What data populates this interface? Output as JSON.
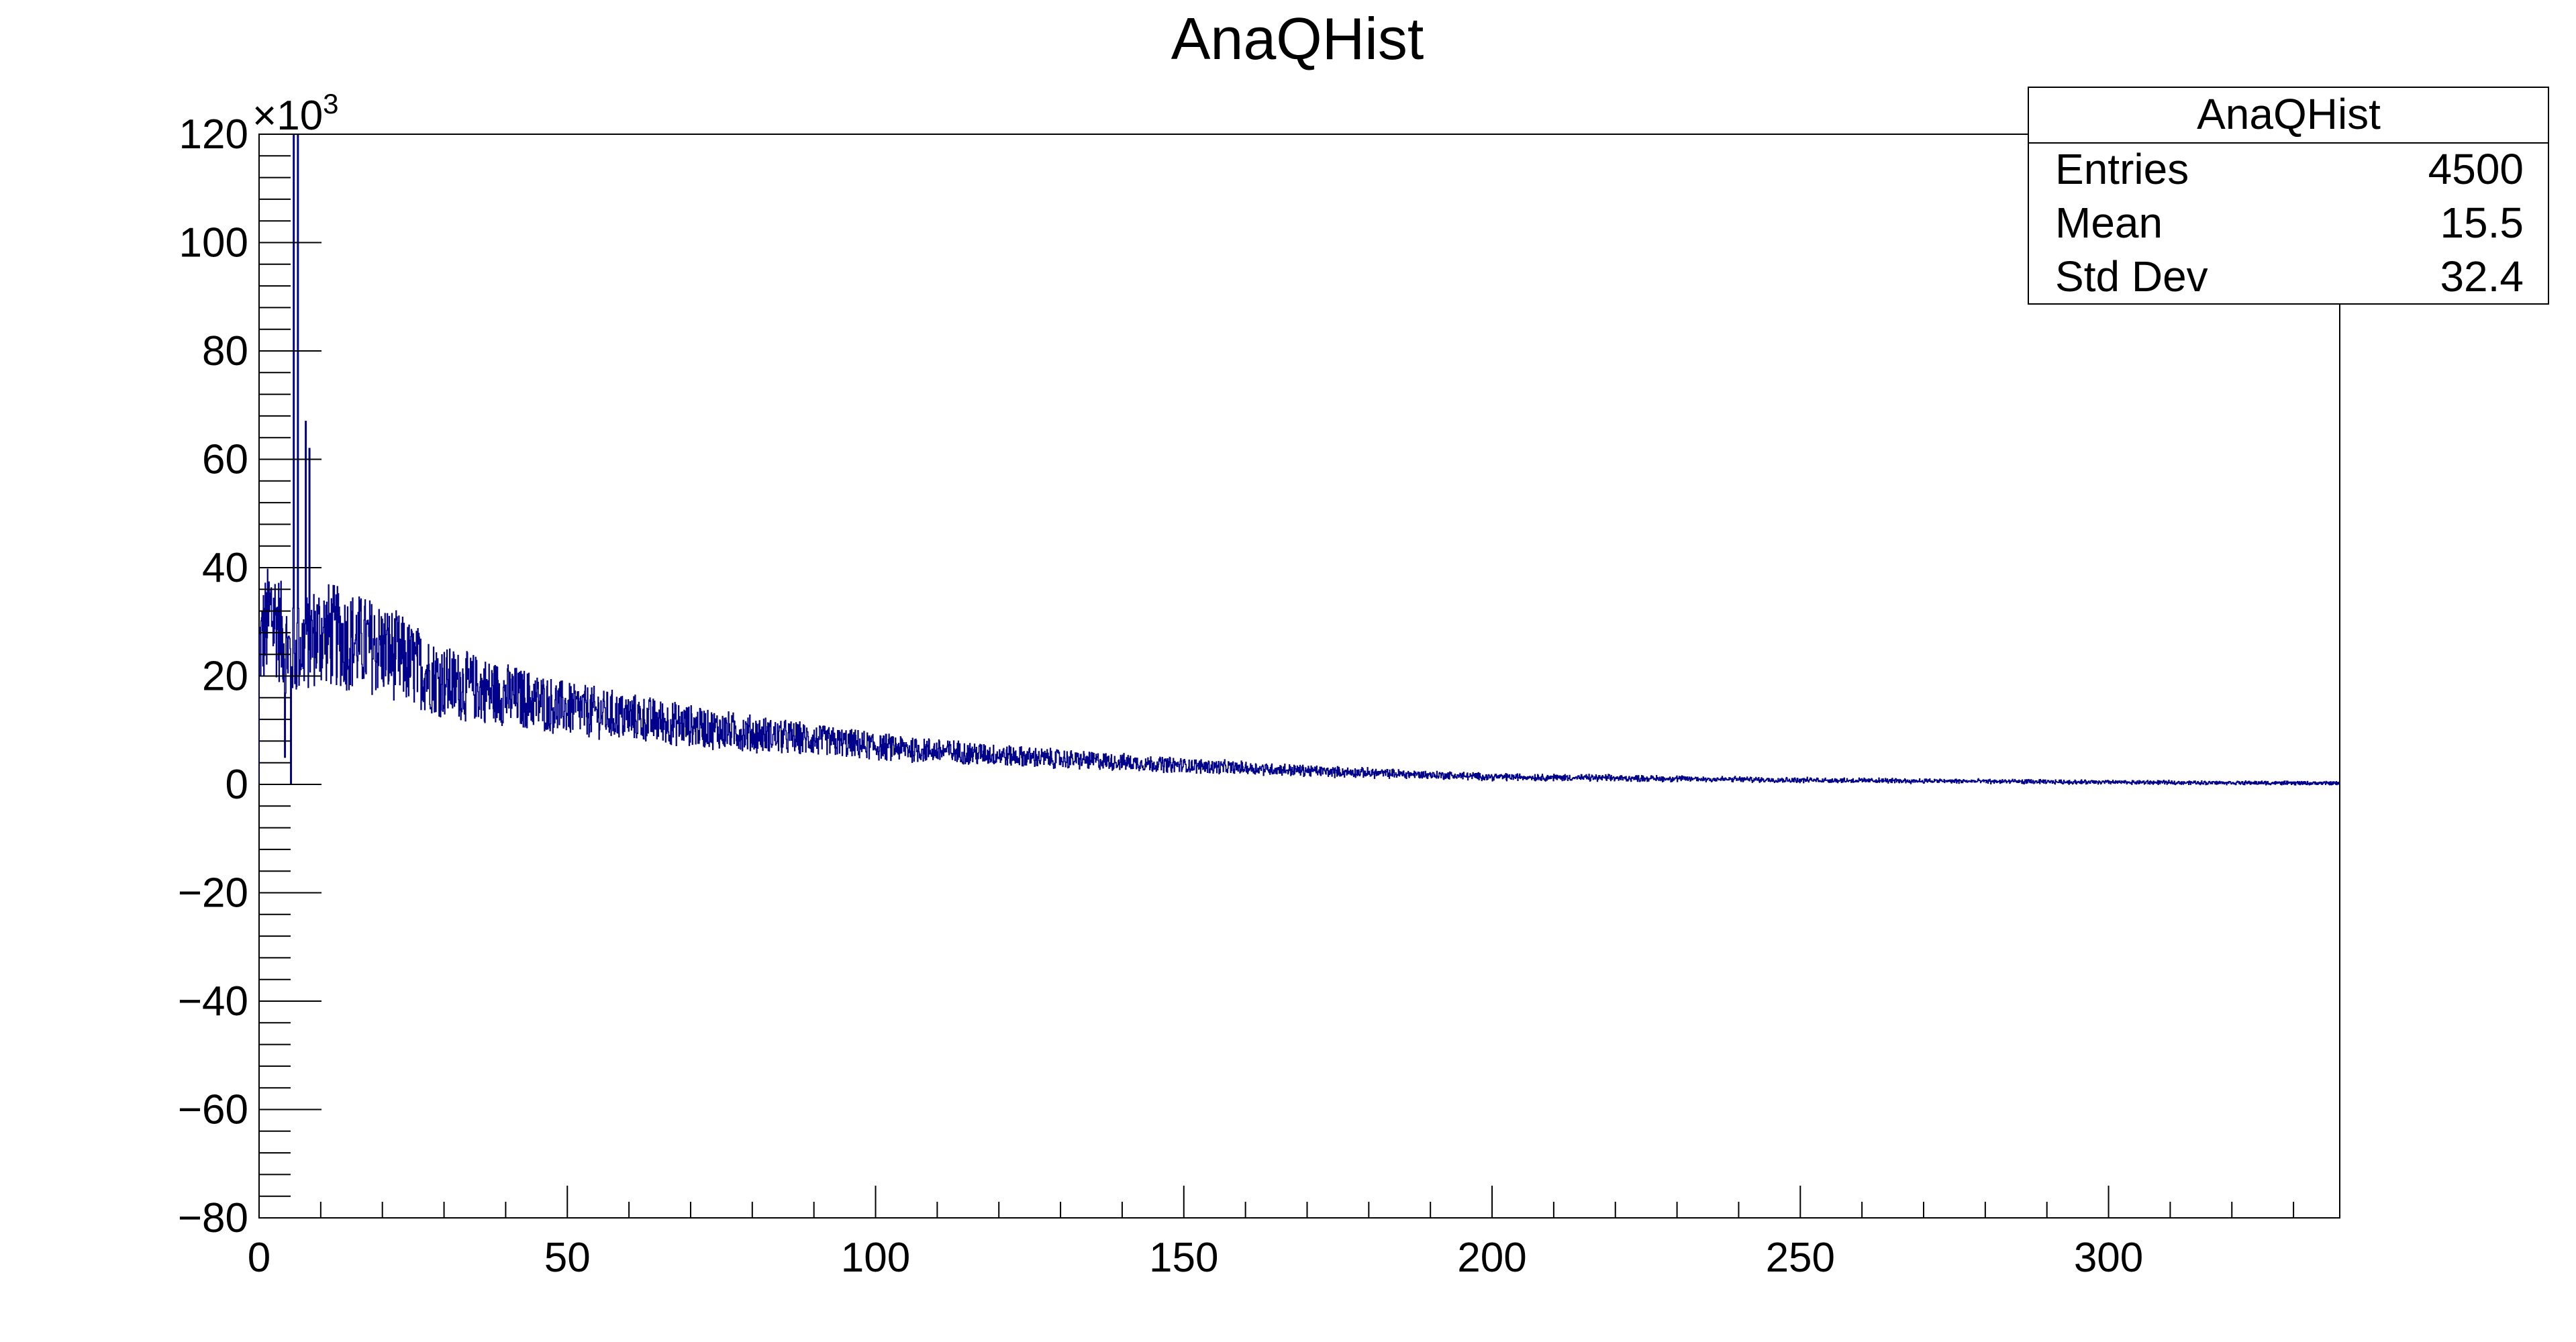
{
  "colors": {
    "series": "#00008b",
    "frame": "#000000",
    "background": "#ffffff"
  },
  "stats_box": {
    "title": "AnaQHist",
    "rows": [
      {
        "label": "Entries",
        "value": "4500"
      },
      {
        "label": "Mean",
        "value": "15.5"
      },
      {
        "label": "Std Dev",
        "value": "32.4"
      }
    ]
  },
  "chart_data": {
    "type": "histogram",
    "title": "AnaQHist",
    "xlabel": "",
    "ylabel": "",
    "y_exponent_label": "×10",
    "y_exponent_power": "3",
    "xlim": [
      0,
      337.5
    ],
    "ylim": [
      -80,
      120
    ],
    "x_major_ticks": [
      0,
      50,
      100,
      150,
      200,
      250,
      300
    ],
    "x_tick_labels": [
      "0",
      "50",
      "100",
      "150",
      "200",
      "250",
      "300"
    ],
    "y_major_ticks": [
      -80,
      -60,
      -40,
      -20,
      0,
      20,
      40,
      60,
      80,
      100,
      120
    ],
    "y_tick_labels": [
      "−80",
      "−60",
      "−40",
      "−20",
      "0",
      "20",
      "40",
      "60",
      "80",
      "100",
      "120"
    ],
    "bin_width": 0.075,
    "trend": {
      "x": [
        0,
        2,
        5,
        10,
        20,
        30,
        50,
        75,
        100,
        125,
        150,
        175,
        200,
        250,
        300,
        337.5
      ],
      "y": [
        25,
        32,
        24,
        28,
        25,
        19,
        14,
        10,
        7,
        5,
        3.5,
        2.3,
        1.4,
        0.8,
        0.4,
        0.2
      ]
    },
    "spikes": [
      {
        "x": 5.6,
        "y": 120
      },
      {
        "x": 6.3,
        "y": 120
      },
      {
        "x": 7.6,
        "y": 67
      },
      {
        "x": 8.2,
        "y": 62
      },
      {
        "x": 4.2,
        "y": 5
      },
      {
        "x": 5.2,
        "y": 0
      }
    ],
    "grid": false,
    "legend": "stats box top-right"
  }
}
